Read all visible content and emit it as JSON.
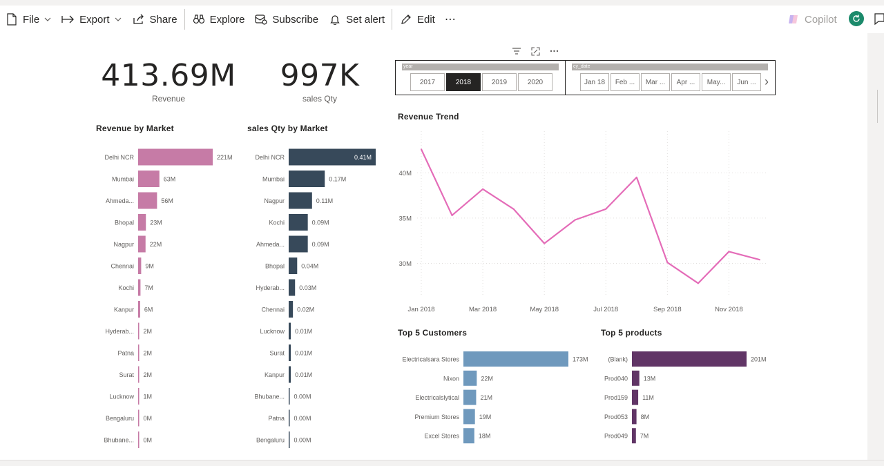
{
  "toolbar": {
    "file": "File",
    "export": "Export",
    "share": "Share",
    "explore": "Explore",
    "subscribe": "Subscribe",
    "set_alert": "Set alert",
    "edit": "Edit",
    "more": "⋯",
    "copilot": "Copilot"
  },
  "kpis": [
    {
      "value": "413.69M",
      "label": "Revenue"
    },
    {
      "value": "997K",
      "label": "sales Qty"
    }
  ],
  "slicers": {
    "year": {
      "header": "year",
      "options": [
        "2017",
        "2018",
        "2019",
        "2020"
      ],
      "selected": "2018"
    },
    "date": {
      "header": "cy_date",
      "options": [
        "Jan 18",
        "Feb ...",
        "Mar ...",
        "Apr ...",
        "May...",
        "Jun ..."
      ],
      "next": "›"
    }
  },
  "chart_data": [
    {
      "type": "bar",
      "orientation": "horizontal",
      "title": "Revenue by Market",
      "color": "#c67ba6",
      "categories": [
        "Delhi NCR",
        "Mumbai",
        "Ahmeda...",
        "Bhopal",
        "Nagpur",
        "Chennai",
        "Kochi",
        "Kanpur",
        "Hyderab...",
        "Patna",
        "Surat",
        "Lucknow",
        "Bengaluru",
        "Bhubane..."
      ],
      "values": [
        221,
        63,
        56,
        23,
        22,
        9,
        7,
        6,
        2,
        2,
        2,
        1,
        0,
        0
      ],
      "labels": [
        "221M",
        "63M",
        "56M",
        "23M",
        "22M",
        "9M",
        "7M",
        "6M",
        "2M",
        "2M",
        "2M",
        "1M",
        "0M",
        "0M"
      ]
    },
    {
      "type": "bar",
      "orientation": "horizontal",
      "title": "sales Qty by Market",
      "color": "#37495a",
      "categories": [
        "Delhi NCR",
        "Mumbai",
        "Nagpur",
        "Kochi",
        "Ahmeda...",
        "Bhopal",
        "Hyderab...",
        "Chennai",
        "Lucknow",
        "Surat",
        "Kanpur",
        "Bhubane...",
        "Patna",
        "Bengaluru"
      ],
      "values": [
        0.41,
        0.17,
        0.11,
        0.09,
        0.09,
        0.04,
        0.03,
        0.02,
        0.01,
        0.01,
        0.01,
        0.004,
        0.002,
        0.001
      ],
      "labels": [
        "0.41M",
        "0.17M",
        "0.11M",
        "0.09M",
        "0.09M",
        "0.04M",
        "0.03M",
        "0.02M",
        "0.01M",
        "0.01M",
        "0.01M",
        "0.00M",
        "0.00M",
        "0.00M"
      ]
    },
    {
      "type": "line",
      "title": "Revenue Trend",
      "color": "#e46cb8",
      "x": [
        "Jan 2018",
        "Feb 2018",
        "Mar 2018",
        "Apr 2018",
        "May 2018",
        "Jun 2018",
        "Jul 2018",
        "Aug 2018",
        "Sep 2018",
        "Oct 2018",
        "Nov 2018",
        "Dec 2018"
      ],
      "values": [
        42.6,
        35.3,
        38.2,
        36.0,
        32.2,
        34.8,
        36.0,
        39.5,
        30.1,
        27.8,
        31.3,
        30.4
      ],
      "xticks": [
        "Jan 2018",
        "Mar 2018",
        "May 2018",
        "Jul 2018",
        "Sep 2018",
        "Nov 2018"
      ],
      "yticks": [
        "30M",
        "35M",
        "40M"
      ],
      "ylim": [
        26.3,
        44.6
      ],
      "grid": true
    },
    {
      "type": "bar",
      "orientation": "horizontal",
      "title": "Top 5 Customers",
      "color": "#6f99bd",
      "categories": [
        "Electricalsara Stores",
        "Nixon",
        "Electricalslytical",
        "Premium Stores",
        "Excel Stores"
      ],
      "values": [
        173,
        22,
        21,
        19,
        18
      ],
      "labels": [
        "173M",
        "22M",
        "21M",
        "19M",
        "18M"
      ]
    },
    {
      "type": "bar",
      "orientation": "horizontal",
      "title": "Top 5 products",
      "color": "#613566",
      "categories": [
        "(Blank)",
        "Prod040",
        "Prod159",
        "Prod053",
        "Prod049"
      ],
      "values": [
        201,
        13,
        11,
        8,
        7
      ],
      "labels": [
        "201M",
        "13M",
        "11M",
        "8M",
        "7M"
      ]
    }
  ]
}
